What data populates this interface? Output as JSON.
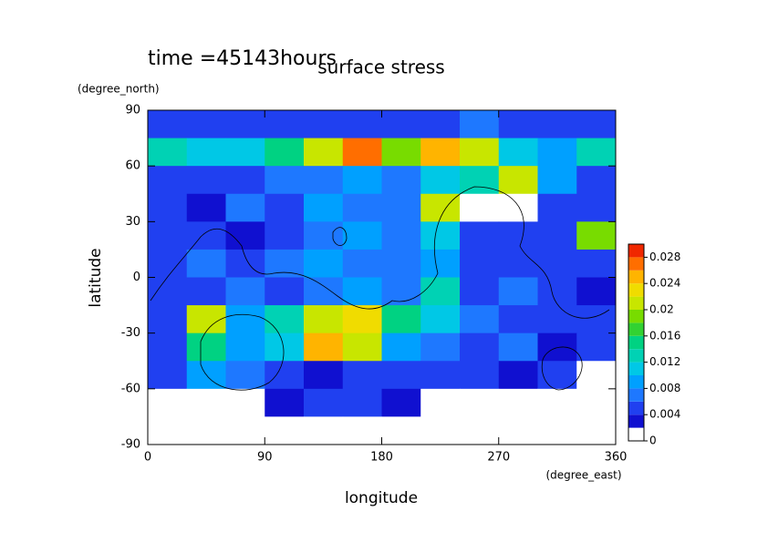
{
  "chart_data": {
    "type": "contour",
    "title": "surface stress",
    "subtitle": "time =45143hours",
    "x_label": "longitude",
    "x_unit": "(degree_east)",
    "y_label": "latitude",
    "y_unit": "(degree_north)",
    "x": [
      15,
      45,
      75,
      105,
      135,
      165,
      195,
      225,
      255,
      285,
      315,
      345
    ],
    "y": [
      82.5,
      67.5,
      52.5,
      37.5,
      22.5,
      7.5,
      -7.5,
      -22.5,
      -37.5,
      -52.5,
      -67.5,
      -82.5
    ],
    "z": [
      [
        0.004,
        0.004,
        0.004,
        0.004,
        0.004,
        0.004,
        0.004,
        0.004,
        0.006,
        0.004,
        0.004,
        0.004
      ],
      [
        0.012,
        0.01,
        0.01,
        0.014,
        0.02,
        0.026,
        0.018,
        0.024,
        0.02,
        0.01,
        0.008,
        0.012
      ],
      [
        0.004,
        0.004,
        0.004,
        0.006,
        0.006,
        0.008,
        0.006,
        0.01,
        0.012,
        0.02,
        0.008,
        0.004
      ],
      [
        0.004,
        0.002,
        0.006,
        0.004,
        0.008,
        0.006,
        0.006,
        0.02,
        0,
        0,
        0.004,
        0.004
      ],
      [
        0.004,
        0.004,
        0.002,
        0.004,
        0.006,
        0.008,
        0.006,
        0.01,
        0.004,
        0.004,
        0.004,
        0.018
      ],
      [
        0.004,
        0.006,
        0.004,
        0.006,
        0.008,
        0.006,
        0.006,
        0.008,
        0.004,
        0.004,
        0.004,
        0.004
      ],
      [
        0.004,
        0.004,
        0.006,
        0.004,
        0.006,
        0.008,
        0.006,
        0.012,
        0.004,
        0.006,
        0.004,
        0.002
      ],
      [
        0.004,
        0.02,
        0.008,
        0.012,
        0.02,
        0.022,
        0.014,
        0.01,
        0.006,
        0.004,
        0.004,
        0.004
      ],
      [
        0.004,
        0.014,
        0.008,
        0.01,
        0.024,
        0.02,
        0.008,
        0.006,
        0.004,
        0.006,
        0.002,
        0.004
      ],
      [
        0.004,
        0.008,
        0.006,
        0.004,
        0.002,
        0.004,
        0.004,
        0.004,
        0.004,
        0.002,
        0.004,
        0
      ],
      [
        0,
        0,
        0,
        0.002,
        0.004,
        0.004,
        0.002,
        0,
        0,
        0,
        0,
        0
      ],
      [
        0,
        0,
        0,
        0,
        0,
        0,
        0,
        0,
        0,
        0,
        0,
        0
      ]
    ],
    "xlim": [
      0,
      360
    ],
    "xticks": [
      0,
      90,
      180,
      270,
      360
    ],
    "ylim": [
      -90,
      90
    ],
    "yticks": [
      90,
      60,
      30,
      0,
      -30,
      -60,
      -90
    ],
    "levels": [
      0,
      0.002,
      0.004,
      0.006,
      0.008,
      0.01,
      0.012,
      0.014,
      0.016,
      0.018,
      0.02,
      0.022,
      0.024,
      0.026,
      0.028,
      0.03
    ],
    "colors": [
      "#ffffff",
      "#1010d0",
      "#2040f0",
      "#1e78ff",
      "#00a0ff",
      "#00c8e6",
      "#00d2b4",
      "#00d282",
      "#32d232",
      "#78dc00",
      "#c8e600",
      "#f0dc00",
      "#ffb400",
      "#ff6e00",
      "#f02800"
    ],
    "clim": [
      0,
      0.03
    ],
    "cticks": [
      0,
      0.004,
      0.008,
      0.012,
      0.016,
      0.02,
      0.024,
      0.028
    ]
  }
}
